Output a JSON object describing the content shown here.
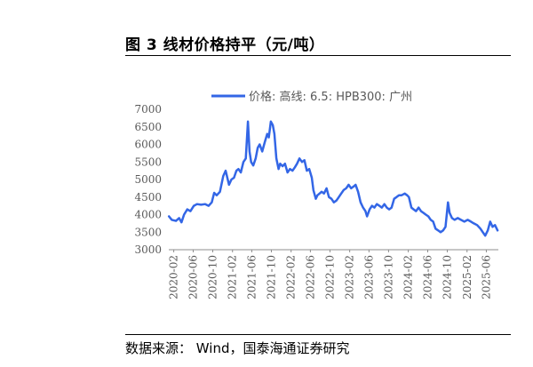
{
  "figure": {
    "title": "图 3  线材价格持平（元/吨）",
    "source": "数据来源：  Wind，国泰海通证券研究"
  },
  "chart_data": {
    "type": "line",
    "title": "",
    "xlabel": "",
    "ylabel": "",
    "ylim": [
      3000,
      7000
    ],
    "yticks": [
      3000,
      3500,
      4000,
      4500,
      5000,
      5500,
      6000,
      6500,
      7000
    ],
    "xtick_labels": [
      "2020-02",
      "2020-06",
      "2020-10",
      "2021-02",
      "2021-06",
      "2021-10",
      "2022-02",
      "2022-06",
      "2022-10",
      "2023-02",
      "2023-06",
      "2023-10",
      "2024-02",
      "2024-06",
      "2024-10",
      "2025-02",
      "2025-06"
    ],
    "grid": false,
    "legend_position": "top",
    "series": [
      {
        "name": "价格: 高线: 6.5: HPB300: 广州",
        "color": "#3366e6",
        "points": [
          [
            "2020-01-02",
            3950
          ],
          [
            "2020-01-20",
            3850
          ],
          [
            "2020-02-15",
            3820
          ],
          [
            "2020-03-05",
            3900
          ],
          [
            "2020-03-20",
            3780
          ],
          [
            "2020-04-05",
            4000
          ],
          [
            "2020-04-25",
            4150
          ],
          [
            "2020-05-15",
            4100
          ],
          [
            "2020-06-05",
            4250
          ],
          [
            "2020-06-25",
            4300
          ],
          [
            "2020-07-20",
            4280
          ],
          [
            "2020-08-15",
            4300
          ],
          [
            "2020-09-05",
            4250
          ],
          [
            "2020-09-25",
            4350
          ],
          [
            "2020-10-10",
            4620
          ],
          [
            "2020-10-25",
            4550
          ],
          [
            "2020-11-15",
            4650
          ],
          [
            "2020-12-05",
            5100
          ],
          [
            "2020-12-20",
            5250
          ],
          [
            "2021-01-10",
            4850
          ],
          [
            "2021-01-25",
            5000
          ],
          [
            "2021-02-10",
            5050
          ],
          [
            "2021-02-25",
            5250
          ],
          [
            "2021-03-10",
            5300
          ],
          [
            "2021-03-25",
            5200
          ],
          [
            "2021-04-10",
            5500
          ],
          [
            "2021-04-25",
            5600
          ],
          [
            "2021-05-08",
            6650
          ],
          [
            "2021-05-18",
            5800
          ],
          [
            "2021-05-28",
            5500
          ],
          [
            "2021-06-10",
            5400
          ],
          [
            "2021-06-25",
            5600
          ],
          [
            "2021-07-08",
            5900
          ],
          [
            "2021-07-20",
            6000
          ],
          [
            "2021-08-05",
            5800
          ],
          [
            "2021-08-20",
            6050
          ],
          [
            "2021-09-05",
            6300
          ],
          [
            "2021-09-15",
            6200
          ],
          [
            "2021-09-28",
            6650
          ],
          [
            "2021-10-10",
            6550
          ],
          [
            "2021-10-20",
            6300
          ],
          [
            "2021-11-01",
            5600
          ],
          [
            "2021-11-15",
            5300
          ],
          [
            "2021-11-25",
            5450
          ],
          [
            "2021-12-10",
            5380
          ],
          [
            "2021-12-25",
            5450
          ],
          [
            "2022-01-10",
            5200
          ],
          [
            "2022-01-25",
            5300
          ],
          [
            "2022-02-10",
            5250
          ],
          [
            "2022-02-25",
            5350
          ],
          [
            "2022-03-10",
            5450
          ],
          [
            "2022-03-25",
            5600
          ],
          [
            "2022-04-10",
            5500
          ],
          [
            "2022-04-25",
            5550
          ],
          [
            "2022-05-10",
            5250
          ],
          [
            "2022-05-25",
            5300
          ],
          [
            "2022-06-10",
            5050
          ],
          [
            "2022-06-20",
            4700
          ],
          [
            "2022-07-05",
            4450
          ],
          [
            "2022-07-15",
            4550
          ],
          [
            "2022-07-28",
            4600
          ],
          [
            "2022-08-10",
            4650
          ],
          [
            "2022-08-25",
            4600
          ],
          [
            "2022-09-10",
            4750
          ],
          [
            "2022-09-25",
            4500
          ],
          [
            "2022-10-10",
            4450
          ],
          [
            "2022-10-25",
            4350
          ],
          [
            "2022-11-10",
            4400
          ],
          [
            "2022-11-25",
            4500
          ],
          [
            "2022-12-10",
            4600
          ],
          [
            "2022-12-25",
            4700
          ],
          [
            "2023-01-10",
            4750
          ],
          [
            "2023-01-25",
            4850
          ],
          [
            "2023-02-10",
            4750
          ],
          [
            "2023-02-25",
            4800
          ],
          [
            "2023-03-10",
            4850
          ],
          [
            "2023-03-25",
            4650
          ],
          [
            "2023-04-10",
            4350
          ],
          [
            "2023-04-25",
            4200
          ],
          [
            "2023-05-10",
            4100
          ],
          [
            "2023-05-20",
            3950
          ],
          [
            "2023-06-05",
            4150
          ],
          [
            "2023-06-20",
            4250
          ],
          [
            "2023-07-05",
            4200
          ],
          [
            "2023-07-20",
            4300
          ],
          [
            "2023-08-05",
            4250
          ],
          [
            "2023-08-20",
            4200
          ],
          [
            "2023-09-05",
            4300
          ],
          [
            "2023-09-20",
            4200
          ],
          [
            "2023-10-05",
            4150
          ],
          [
            "2023-10-20",
            4200
          ],
          [
            "2023-11-05",
            4450
          ],
          [
            "2023-11-20",
            4500
          ],
          [
            "2023-12-05",
            4550
          ],
          [
            "2023-12-20",
            4550
          ],
          [
            "2024-01-10",
            4600
          ],
          [
            "2024-01-25",
            4550
          ],
          [
            "2024-02-05",
            4500
          ],
          [
            "2024-02-20",
            4200
          ],
          [
            "2024-03-05",
            4150
          ],
          [
            "2024-03-20",
            4100
          ],
          [
            "2024-04-05",
            4200
          ],
          [
            "2024-04-20",
            4100
          ],
          [
            "2024-05-05",
            4050
          ],
          [
            "2024-05-20",
            4000
          ],
          [
            "2024-06-05",
            3950
          ],
          [
            "2024-06-20",
            3850
          ],
          [
            "2024-07-05",
            3800
          ],
          [
            "2024-07-20",
            3600
          ],
          [
            "2024-08-05",
            3550
          ],
          [
            "2024-08-20",
            3500
          ],
          [
            "2024-09-05",
            3550
          ],
          [
            "2024-09-20",
            3650
          ],
          [
            "2024-10-05",
            4350
          ],
          [
            "2024-10-15",
            4050
          ],
          [
            "2024-10-30",
            3900
          ],
          [
            "2024-11-15",
            3850
          ],
          [
            "2024-12-05",
            3900
          ],
          [
            "2024-12-25",
            3850
          ],
          [
            "2025-01-15",
            3800
          ],
          [
            "2025-02-05",
            3850
          ],
          [
            "2025-02-25",
            3800
          ],
          [
            "2025-03-15",
            3750
          ],
          [
            "2025-04-05",
            3700
          ],
          [
            "2025-04-25",
            3600
          ],
          [
            "2025-05-10",
            3500
          ],
          [
            "2025-05-25",
            3400
          ],
          [
            "2025-06-10",
            3550
          ],
          [
            "2025-06-25",
            3800
          ],
          [
            "2025-07-10",
            3650
          ],
          [
            "2025-07-25",
            3700
          ],
          [
            "2025-08-10",
            3550
          ]
        ]
      }
    ]
  }
}
